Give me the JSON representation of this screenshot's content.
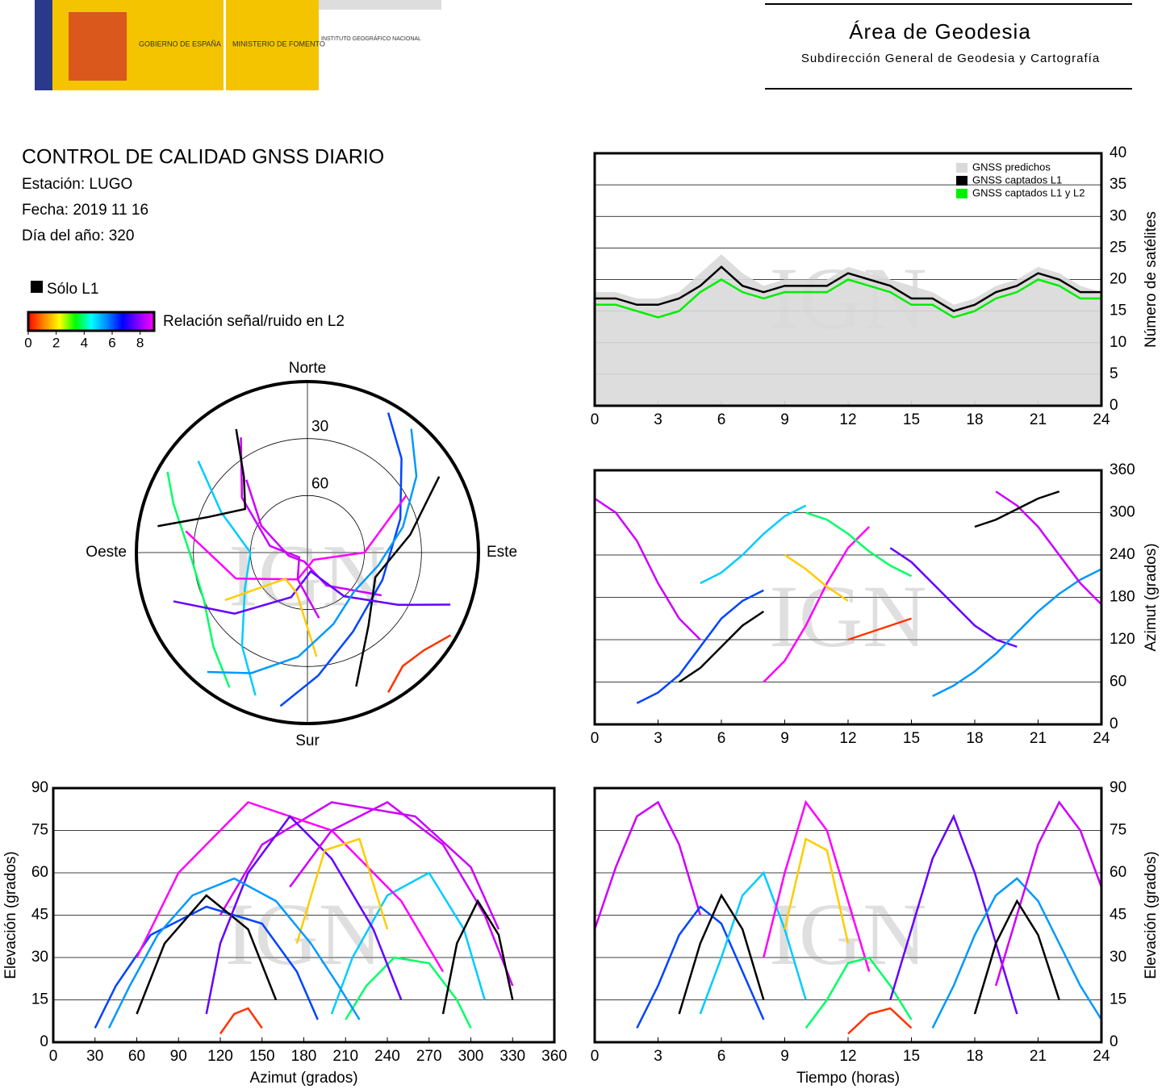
{
  "header": {
    "government": "GOBIERNO DE ESPAÑA",
    "ministry": "MINISTERIO DE FOMENTO",
    "institute": "INSTITUTO GEOGRÁFICO NACIONAL",
    "area": "Área de Geodesia",
    "subdirectorate": "Subdirección General de Geodesia y Cartografía"
  },
  "report": {
    "title": "CONTROL DE CALIDAD GNSS DIARIO",
    "station": "Estación: LUGO",
    "date": "Fecha: 2019 11 16",
    "doy": "Día del año: 320"
  },
  "legend": {
    "l1_only": "Sólo L1",
    "snr_label": "Relación señal/ruido en L2",
    "snr_lim": [
      0,
      9
    ],
    "snr_ticks": [
      0,
      2,
      4,
      6,
      8
    ],
    "colormap": [
      "#ff0000",
      "#ff8800",
      "#ffff00",
      "#00ff00",
      "#00ffff",
      "#0088ff",
      "#0000ff",
      "#8800ff",
      "#ff00ff"
    ]
  },
  "watermark": "IGN",
  "chart_data": [
    {
      "type": "line",
      "xlim": [
        0,
        24
      ],
      "xticks": [
        0,
        3,
        6,
        9,
        12,
        15,
        18,
        21,
        24
      ],
      "ylim": [
        0,
        40
      ],
      "yticks": [
        0,
        5,
        10,
        15,
        20,
        25,
        30,
        35,
        40
      ],
      "ylabel": "Número de satélites",
      "grid": true,
      "legend": "top-right",
      "x": [
        0,
        1,
        2,
        3,
        4,
        5,
        6,
        7,
        8,
        9,
        10,
        11,
        12,
        13,
        14,
        15,
        16,
        17,
        18,
        19,
        20,
        21,
        22,
        23,
        24
      ],
      "series": [
        {
          "name": "GNSS predichos",
          "color": "#d9d9d9",
          "values": [
            18,
            18,
            17,
            17,
            18,
            21,
            24,
            21,
            19,
            20,
            20,
            20,
            22,
            21,
            20,
            19,
            18,
            16,
            17,
            19,
            20,
            22,
            21,
            19,
            18
          ]
        },
        {
          "name": "GNSS captados L1",
          "color": "#000000",
          "values": [
            17,
            17,
            16,
            16,
            17,
            19,
            22,
            19,
            18,
            19,
            19,
            19,
            21,
            20,
            19,
            17,
            17,
            15,
            16,
            18,
            19,
            21,
            20,
            18,
            18
          ]
        },
        {
          "name": "GNSS captados L1 y L2",
          "color": "#00ee00",
          "values": [
            16,
            16,
            15,
            14,
            15,
            18,
            20,
            18,
            17,
            18,
            18,
            18,
            20,
            19,
            18,
            16,
            16,
            14,
            15,
            17,
            18,
            20,
            19,
            17,
            17
          ]
        }
      ]
    },
    {
      "type": "polar",
      "north": "Norte",
      "south": "Sur",
      "east": "Este",
      "west": "Oeste",
      "rticks": [
        30,
        60
      ],
      "tracks": [
        {
          "color": "#cc00ff",
          "time": [
            0,
            1,
            2,
            3,
            4,
            5
          ],
          "azimuth": [
            320,
            300,
            260,
            200,
            150,
            120
          ],
          "elevation": [
            40,
            62,
            80,
            85,
            70,
            45
          ]
        },
        {
          "color": "#0044ff",
          "time": [
            2,
            3,
            4,
            5,
            6,
            7,
            8
          ],
          "azimuth": [
            30,
            45,
            70,
            110,
            150,
            175,
            190
          ],
          "elevation": [
            5,
            20,
            38,
            48,
            42,
            25,
            8
          ]
        },
        {
          "color": "#00ccff",
          "time": [
            5,
            6,
            7,
            8,
            9,
            10
          ],
          "azimuth": [
            200,
            215,
            240,
            270,
            295,
            310
          ],
          "elevation": [
            10,
            30,
            52,
            60,
            40,
            15
          ]
        },
        {
          "color": "#ff00ff",
          "time": [
            8,
            9,
            10,
            11,
            12,
            13
          ],
          "azimuth": [
            60,
            90,
            140,
            200,
            250,
            280
          ],
          "elevation": [
            30,
            60,
            85,
            75,
            50,
            25
          ]
        },
        {
          "color": "#000000",
          "time": [
            4,
            5,
            6,
            7,
            8
          ],
          "azimuth": [
            60,
            80,
            110,
            140,
            160
          ],
          "elevation": [
            10,
            35,
            52,
            40,
            15
          ]
        },
        {
          "color": "#00ff66",
          "time": [
            10,
            11,
            12,
            13,
            14,
            15
          ],
          "azimuth": [
            300,
            290,
            270,
            245,
            225,
            210
          ],
          "elevation": [
            5,
            15,
            28,
            30,
            20,
            8
          ]
        },
        {
          "color": "#ff3300",
          "time": [
            12,
            13,
            14,
            15
          ],
          "azimuth": [
            120,
            130,
            140,
            150
          ],
          "elevation": [
            3,
            10,
            12,
            5
          ]
        },
        {
          "color": "#6600ff",
          "time": [
            14,
            15,
            16,
            17,
            18,
            19,
            20
          ],
          "azimuth": [
            250,
            230,
            200,
            170,
            140,
            120,
            110
          ],
          "elevation": [
            15,
            40,
            65,
            80,
            60,
            35,
            10
          ]
        },
        {
          "color": "#ffcc00",
          "time": [
            9,
            10,
            11,
            12
          ],
          "azimuth": [
            240,
            220,
            195,
            175
          ],
          "elevation": [
            40,
            72,
            68,
            35
          ]
        },
        {
          "color": "#0099ff",
          "time": [
            16,
            17,
            18,
            19,
            20,
            21,
            22,
            23,
            24
          ],
          "azimuth": [
            40,
            55,
            75,
            100,
            130,
            160,
            185,
            205,
            220
          ],
          "elevation": [
            5,
            20,
            38,
            52,
            58,
            50,
            35,
            20,
            8
          ]
        },
        {
          "color": "#cc00ff",
          "time": [
            19,
            20,
            21,
            22,
            23,
            24
          ],
          "azimuth": [
            330,
            310,
            280,
            240,
            200,
            170
          ],
          "elevation": [
            20,
            45,
            70,
            85,
            75,
            55
          ]
        },
        {
          "color": "#000000",
          "time": [
            18,
            19,
            20,
            21,
            22
          ],
          "azimuth": [
            280,
            290,
            305,
            320,
            330
          ],
          "elevation": [
            10,
            35,
            50,
            38,
            15
          ]
        }
      ]
    },
    {
      "type": "track",
      "x_field": "time",
      "y_field": "azimuth",
      "xlim": [
        0,
        24
      ],
      "xticks": [
        0,
        3,
        6,
        9,
        12,
        15,
        18,
        21,
        24
      ],
      "ylim": [
        0,
        360
      ],
      "yticks": [
        0,
        60,
        120,
        180,
        240,
        300,
        360
      ],
      "ylabel": "Azimut (grados)",
      "grid": true
    },
    {
      "type": "track",
      "x_field": "azimuth",
      "y_field": "elevation",
      "xlim": [
        0,
        360
      ],
      "xticks": [
        0,
        30,
        60,
        90,
        120,
        150,
        180,
        210,
        240,
        270,
        300,
        330,
        360
      ],
      "ylim": [
        0,
        90
      ],
      "yticks": [
        0,
        15,
        30,
        45,
        60,
        75,
        90
      ],
      "xlabel": "Azimut (grados)",
      "ylabel": "Elevación (grados)",
      "grid": true
    },
    {
      "type": "track",
      "x_field": "time",
      "y_field": "elevation",
      "xlim": [
        0,
        24
      ],
      "xticks": [
        0,
        3,
        6,
        9,
        12,
        15,
        18,
        21,
        24
      ],
      "ylim": [
        0,
        90
      ],
      "yticks": [
        0,
        15,
        30,
        45,
        60,
        75,
        90
      ],
      "xlabel": "Tiempo (horas)",
      "ylabel": "Elevación (grados)",
      "grid": true
    }
  ]
}
